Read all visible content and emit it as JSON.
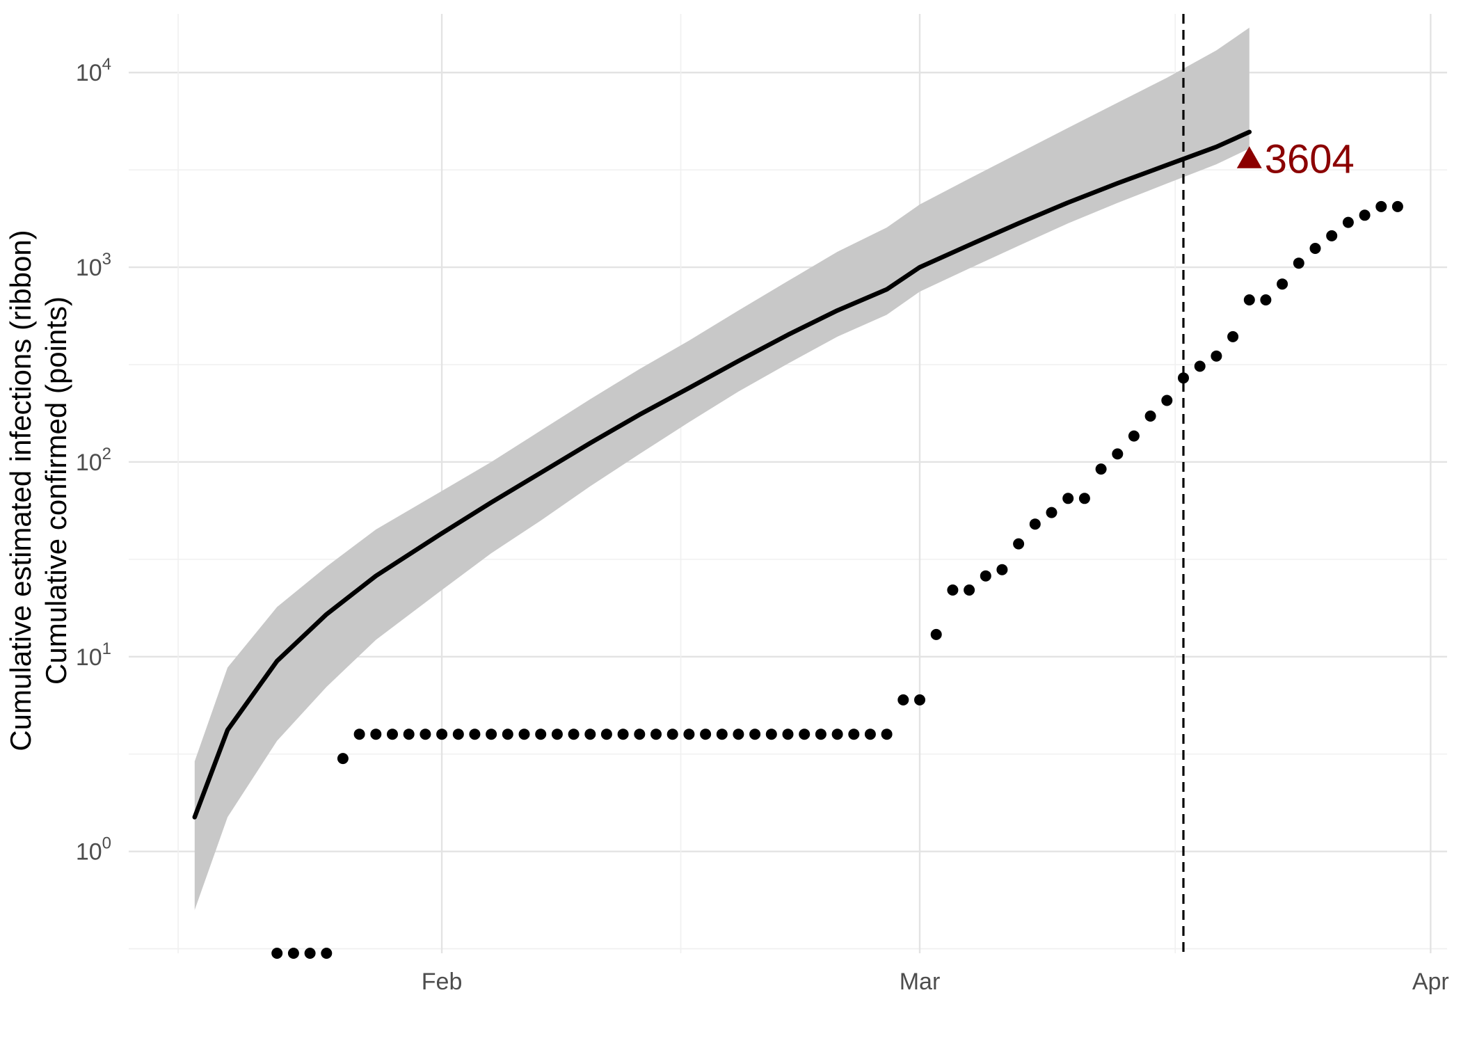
{
  "chart_data": {
    "type": "line",
    "title": "",
    "xlabel": "",
    "ylabel": [
      "Cumulative estimated infections (ribbon)",
      "Cumulative confirmed (points)"
    ],
    "y_scale": "log10",
    "ylim": [
      0.3,
      20000
    ],
    "xlim": [
      "2020-01-13",
      "2020-04-02"
    ],
    "x_ticks": [
      {
        "date": "2020-02-01",
        "label": "Feb"
      },
      {
        "date": "2020-03-01",
        "label": "Mar"
      },
      {
        "date": "2020-04-01",
        "label": "Apr"
      }
    ],
    "y_ticks": [
      {
        "value": 1,
        "base": "10",
        "exp": "0"
      },
      {
        "value": 10,
        "base": "10",
        "exp": "1"
      },
      {
        "value": 100,
        "base": "10",
        "exp": "2"
      },
      {
        "value": 1000,
        "base": "10",
        "exp": "3"
      },
      {
        "value": 10000,
        "base": "10",
        "exp": "4"
      }
    ],
    "grid": true,
    "vline_date": "2020-03-17",
    "estimate_series": {
      "name": "Cumulative estimated infections",
      "dates": [
        "2020-01-17",
        "2020-01-19",
        "2020-01-22",
        "2020-01-25",
        "2020-01-28",
        "2020-02-01",
        "2020-02-04",
        "2020-02-07",
        "2020-02-10",
        "2020-02-13",
        "2020-02-16",
        "2020-02-19",
        "2020-02-22",
        "2020-02-25",
        "2020-02-28",
        "2020-03-01",
        "2020-03-04",
        "2020-03-07",
        "2020-03-10",
        "2020-03-13",
        "2020-03-16",
        "2020-03-19",
        "2020-03-21"
      ],
      "median": [
        1.5,
        4.2,
        9.5,
        16.5,
        26,
        43,
        62,
        88,
        125,
        175,
        240,
        330,
        450,
        600,
        770,
        1000,
        1300,
        1680,
        2150,
        2700,
        3350,
        4150,
        4950
      ],
      "lower": [
        0.5,
        1.5,
        3.7,
        7.0,
        12.2,
        22,
        34,
        50,
        75,
        110,
        160,
        230,
        320,
        440,
        570,
        750,
        985,
        1290,
        1680,
        2140,
        2690,
        3380,
        4070
      ],
      "upper": [
        2.9,
        8.8,
        18,
        29,
        45,
        71,
        100,
        145,
        210,
        300,
        420,
        600,
        850,
        1200,
        1600,
        2100,
        2850,
        3850,
        5200,
        7000,
        9400,
        13000,
        17000
      ]
    },
    "endpoint": {
      "date": "2020-03-21",
      "value": 3604,
      "label": "3604",
      "color": "#8b0000"
    },
    "confirmed_series": {
      "name": "Cumulative confirmed",
      "start_date": "2020-01-22",
      "values": [
        0.3,
        0.3,
        0.3,
        0.3,
        3,
        4,
        4,
        4,
        4,
        4,
        4,
        4,
        4,
        4,
        4,
        4,
        4,
        4,
        4,
        4,
        4,
        4,
        4,
        4,
        4,
        4,
        4,
        4,
        4,
        4,
        4,
        4,
        4,
        4,
        4,
        4,
        4,
        4,
        6,
        6,
        13,
        22,
        22,
        26,
        28,
        38,
        48,
        55,
        65,
        65,
        92,
        110,
        136,
        172,
        207,
        270,
        310,
        350,
        440,
        680,
        680,
        820,
        1050,
        1250,
        1450,
        1700,
        1850,
        2050,
        2050
      ]
    },
    "colors": {
      "ribbon": "#c8c8c8",
      "line": "#000000",
      "points": "#000000",
      "vline": "#000000",
      "annotation": "#8b0000"
    }
  }
}
